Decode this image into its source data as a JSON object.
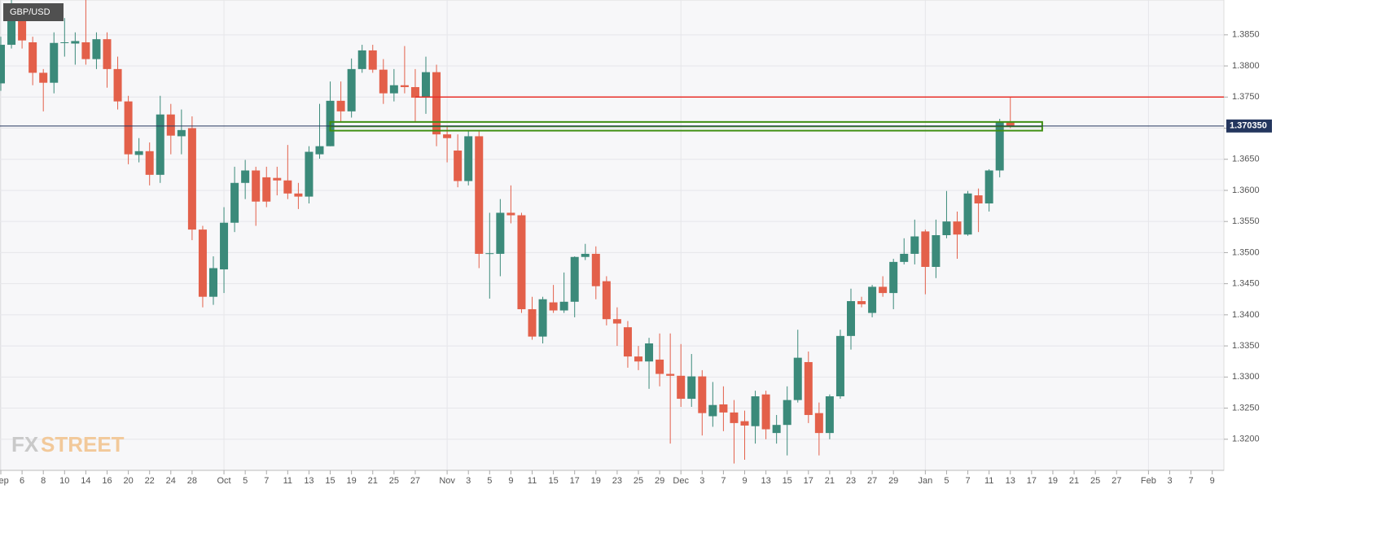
{
  "chart_data": {
    "type": "candlestick",
    "title": "GBP/USD",
    "categories": [
      "Sep",
      null,
      "6",
      null,
      "8",
      null,
      "10",
      null,
      "14",
      null,
      "16",
      null,
      "20",
      null,
      "22",
      null,
      "24",
      null,
      "28",
      null,
      null,
      "Oct",
      null,
      "5",
      null,
      "7",
      null,
      "11",
      null,
      "13",
      null,
      "15",
      null,
      "19",
      null,
      "21",
      null,
      "25",
      null,
      "27",
      null,
      null,
      "Nov",
      null,
      "3",
      null,
      "5",
      null,
      "9",
      null,
      "11",
      null,
      "15",
      null,
      "17",
      null,
      "19",
      null,
      "23",
      null,
      "25",
      null,
      "29",
      null,
      "Dec",
      null,
      "3",
      null,
      "7",
      null,
      "9",
      null,
      "13",
      null,
      "15",
      null,
      "17",
      null,
      "21",
      null,
      "23",
      null,
      "27",
      null,
      "29",
      null,
      null,
      "Jan",
      null,
      "5",
      null,
      "7",
      null,
      "11",
      null,
      "13",
      null,
      "17",
      null,
      "19",
      null,
      "21",
      null,
      "25",
      null,
      "27",
      null,
      null,
      "Feb",
      null,
      "3",
      null,
      "7",
      null,
      "9",
      null
    ],
    "open": [
      1.3772,
      1.3834,
      1.388,
      1.3838,
      1.3789,
      1.3773,
      1.3837,
      1.3836,
      1.3838,
      1.3811,
      1.3843,
      1.3795,
      1.3743,
      1.3657,
      1.3663,
      1.3625,
      1.3722,
      1.3687,
      1.37,
      1.3537,
      1.3429,
      1.3473,
      1.3548,
      1.3612,
      1.3632,
      1.3621,
      1.362,
      1.3616,
      1.3595,
      1.359,
      1.3658,
      1.3671,
      1.3744,
      1.3727,
      1.3795,
      1.3825,
      1.3794,
      1.3756,
      1.3769,
      1.3766,
      1.3749,
      1.379,
      1.369,
      1.3664,
      1.3615,
      1.3687,
      1.3498,
      1.3498,
      1.3564,
      1.356,
      1.3409,
      1.3365,
      1.342,
      1.3407,
      1.3421,
      1.3493,
      1.3498,
      1.3454,
      1.3393,
      1.338,
      1.3333,
      1.3325,
      1.3328,
      1.3305,
      1.3302,
      1.3265,
      1.3301,
      1.3237,
      1.3256,
      1.3243,
      1.3229,
      1.3221,
      1.3272,
      1.321,
      1.3223,
      1.3263,
      1.3324,
      1.3242,
      1.321,
      1.3269,
      1.3366,
      1.3422,
      1.3403,
      1.3445,
      1.3435,
      1.3485,
      1.3498,
      1.3534,
      1.3477,
      1.3528,
      1.355,
      1.3529,
      1.3592,
      1.3579,
      1.3632,
      1.3709,
      null,
      null,
      null,
      null,
      null,
      null,
      null,
      null,
      null,
      null,
      null,
      null,
      null,
      null,
      null,
      null,
      null,
      null,
      null,
      null
    ],
    "high": [
      1.3847,
      1.3906,
      1.3893,
      1.3847,
      1.3795,
      1.3854,
      1.3877,
      1.3854,
      1.3906,
      1.3854,
      1.3854,
      1.3815,
      1.3752,
      1.3684,
      1.3677,
      1.3752,
      1.3739,
      1.373,
      1.3719,
      1.3543,
      1.3494,
      1.3573,
      1.3638,
      1.3649,
      1.3638,
      1.3638,
      1.3638,
      1.3673,
      1.3612,
      1.3671,
      1.3739,
      1.3775,
      1.3775,
      1.3812,
      1.3834,
      1.3834,
      1.3811,
      1.3795,
      1.3832,
      1.3795,
      1.3815,
      1.3802,
      1.3704,
      1.369,
      1.3697,
      1.3697,
      1.3564,
      1.3586,
      1.3608,
      1.3564,
      1.3429,
      1.3429,
      1.3448,
      1.3468,
      1.3494,
      1.3514,
      1.351,
      1.3462,
      1.3412,
      1.339,
      1.335,
      1.3363,
      1.337,
      1.337,
      1.3353,
      1.3337,
      1.3311,
      1.3292,
      1.3285,
      1.3263,
      1.3246,
      1.3278,
      1.3278,
      1.3239,
      1.3285,
      1.3376,
      1.3341,
      1.3259,
      1.3272,
      1.3376,
      1.3442,
      1.3429,
      1.3448,
      1.3462,
      1.349,
      1.3523,
      1.3553,
      1.3537,
      1.3553,
      1.3599,
      1.3566,
      1.3599,
      1.3603,
      1.3634,
      1.3715,
      1.3749,
      null,
      null,
      null,
      null,
      null,
      null,
      null,
      null,
      null,
      null,
      null,
      null,
      null,
      null,
      null,
      null,
      null,
      null,
      null,
      null
    ],
    "low": [
      1.376,
      1.3828,
      1.3828,
      1.3769,
      1.3727,
      1.3756,
      1.3815,
      1.3802,
      1.3802,
      1.3795,
      1.3765,
      1.373,
      1.3642,
      1.3645,
      1.3608,
      1.3612,
      1.3658,
      1.3658,
      1.352,
      1.3412,
      1.3416,
      1.3435,
      1.3533,
      1.3586,
      1.3543,
      1.3573,
      1.3592,
      1.3586,
      1.357,
      1.3579,
      1.3651,
      1.3671,
      1.371,
      1.3717,
      1.3789,
      1.3789,
      1.3739,
      1.3743,
      1.3756,
      1.371,
      1.3723,
      1.3671,
      1.3645,
      1.3605,
      1.3608,
      1.3475,
      1.3426,
      1.3462,
      1.3547,
      1.3403,
      1.336,
      1.3354,
      1.3403,
      1.3403,
      1.3396,
      1.3488,
      1.3425,
      1.3383,
      1.335,
      1.3315,
      1.3311,
      1.3281,
      1.3285,
      1.3193,
      1.3252,
      1.3252,
      1.3206,
      1.322,
      1.3213,
      1.3161,
      1.3167,
      1.3193,
      1.32,
      1.3193,
      1.3174,
      1.3259,
      1.3226,
      1.3174,
      1.32,
      1.3265,
      1.3344,
      1.3412,
      1.3396,
      1.3429,
      1.3409,
      1.3481,
      1.3481,
      1.3433,
      1.3459,
      1.3523,
      1.349,
      1.3527,
      1.3533,
      1.3566,
      1.3621,
      1.37,
      null,
      null,
      null,
      null,
      null,
      null,
      null,
      null,
      null,
      null,
      null,
      null,
      null,
      null,
      null,
      null,
      null,
      null,
      null,
      null
    ],
    "close": [
      1.3834,
      1.388,
      1.3841,
      1.3789,
      1.3773,
      1.3837,
      1.3838,
      1.384,
      1.3811,
      1.3843,
      1.3795,
      1.3743,
      1.3658,
      1.3663,
      1.3625,
      1.3722,
      1.3688,
      1.3697,
      1.3537,
      1.3429,
      1.3475,
      1.3548,
      1.3612,
      1.3632,
      1.3582,
      1.3582,
      1.3616,
      1.3595,
      1.359,
      1.3662,
      1.3671,
      1.3744,
      1.3727,
      1.3795,
      1.3825,
      1.3794,
      1.3756,
      1.3769,
      1.3766,
      1.3749,
      1.379,
      1.369,
      1.3684,
      1.3615,
      1.3687,
      1.3498,
      1.3499,
      1.3564,
      1.356,
      1.3409,
      1.3365,
      1.3425,
      1.3407,
      1.3421,
      1.3493,
      1.3498,
      1.3446,
      1.3393,
      1.3386,
      1.3333,
      1.3325,
      1.3354,
      1.3305,
      1.3302,
      1.3265,
      1.3301,
      1.3242,
      1.3255,
      1.3243,
      1.3226,
      1.3222,
      1.3269,
      1.3216,
      1.3223,
      1.3263,
      1.3331,
      1.3239,
      1.321,
      1.3269,
      1.3366,
      1.3422,
      1.3417,
      1.3445,
      1.3435,
      1.3485,
      1.3498,
      1.3526,
      1.3477,
      1.3528,
      1.355,
      1.3529,
      1.3595,
      1.3579,
      1.3632,
      1.371,
      1.3703,
      null,
      null,
      null,
      null,
      null,
      null,
      null,
      null,
      null,
      null,
      null,
      null,
      null,
      null,
      null,
      null,
      null,
      null,
      null,
      null
    ],
    "up_color": "#3b8a7a",
    "down_color": "#e3604a",
    "ylim": [
      1.315,
      1.3906
    ],
    "yticks": [
      {
        "value": 1.32,
        "label": "1.3200"
      },
      {
        "value": 1.325,
        "label": "1.3250"
      },
      {
        "value": 1.33,
        "label": "1.3300"
      },
      {
        "value": 1.335,
        "label": "1.3350"
      },
      {
        "value": 1.34,
        "label": "1.3400"
      },
      {
        "value": 1.345,
        "label": "1.3450"
      },
      {
        "value": 1.35,
        "label": "1.3500"
      },
      {
        "value": 1.355,
        "label": "1.3550"
      },
      {
        "value": 1.36,
        "label": "1.3600"
      },
      {
        "value": 1.365,
        "label": "1.3650"
      },
      {
        "value": 1.37,
        "label": "1.3700"
      },
      {
        "value": 1.375,
        "label": "1.3750"
      },
      {
        "value": 1.38,
        "label": "1.3800"
      },
      {
        "value": 1.385,
        "label": "1.3850"
      }
    ],
    "grid": true,
    "level": {
      "value": 1.375,
      "color": "#e8302a"
    },
    "zone": {
      "low": 1.3696,
      "high": 1.371,
      "color": "#3f8f12"
    },
    "last_price": {
      "value": 1.37035,
      "label": "1.370350",
      "color": "#24365e"
    },
    "watermark": [
      "FX",
      "STREET"
    ]
  }
}
